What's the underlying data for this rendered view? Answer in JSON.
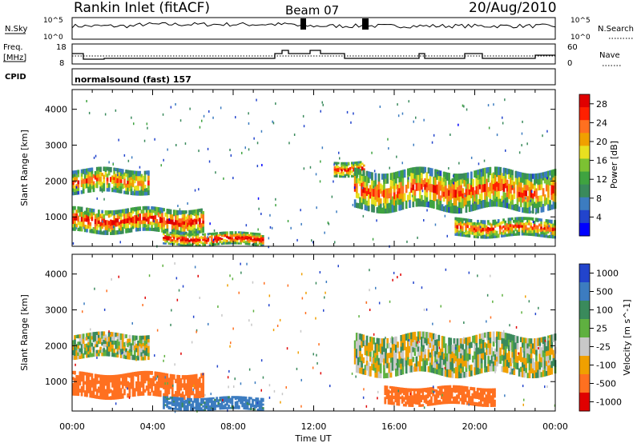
{
  "header": {
    "station": "Rankin Inlet (fitACF)",
    "beam": "Beam 07",
    "date": "20/Aug/2010"
  },
  "noise_panel": {
    "left_label": "N.Sky",
    "right_label": "N.Search",
    "left_ticks": [
      "10^5",
      "10^0"
    ],
    "right_ticks": [
      "10^5",
      "10^0"
    ]
  },
  "freq_panel": {
    "left_label_1": "Freq.",
    "left_label_2": "[MHz]",
    "right_label": "Nave",
    "left_ticks": [
      "18",
      "8"
    ],
    "right_ticks": [
      "60",
      "0"
    ]
  },
  "cpid": {
    "label": "CPID",
    "value": "normalsound (fast) 157"
  },
  "colors": {
    "power": [
      "#0000ff",
      "#2244cc",
      "#3c7cc0",
      "#3a8a5c",
      "#3fa340",
      "#7cc232",
      "#e8e020",
      "#f0a000",
      "#ff7020",
      "#ff2000",
      "#e00000"
    ],
    "velocity": [
      "#2244cc",
      "#3c7cc0",
      "#3a8a5c",
      "#5fb040",
      "#c8c8c8",
      "#f0a000",
      "#ff7020",
      "#e00000"
    ]
  },
  "chart_data": [
    {
      "type": "heatmap",
      "title": "",
      "xlabel": "Time UT",
      "ylabel": "Slant Range [km]",
      "xlim": [
        "00:00",
        "24:00"
      ],
      "ylim": [
        180,
        4550
      ],
      "x_ticks": [
        "00:00",
        "04:00",
        "08:00",
        "12:00",
        "16:00",
        "20:00",
        "00:00"
      ],
      "y_ticks": [
        "1000",
        "2000",
        "3000",
        "4000"
      ],
      "colorbar": {
        "label": "Power [dB]",
        "ticks": [
          "4",
          "8",
          "12",
          "16",
          "20",
          "24",
          "28"
        ],
        "range": [
          0,
          30
        ]
      },
      "echo_bands": [
        {
          "t_start": 0.0,
          "t_end": 3.8,
          "range_low": 1600,
          "range_high": 2400,
          "power_peak": 24
        },
        {
          "t_start": 0.0,
          "t_end": 6.5,
          "range_low": 500,
          "range_high": 1300,
          "power_peak": 28
        },
        {
          "t_start": 4.5,
          "t_end": 9.5,
          "range_low": 180,
          "range_high": 600,
          "power_peak": 30
        },
        {
          "t_start": 13.0,
          "t_end": 14.5,
          "range_low": 2100,
          "range_high": 2600,
          "power_peak": 28
        },
        {
          "t_start": 14.0,
          "t_end": 24.0,
          "range_low": 1100,
          "range_high": 2400,
          "power_peak": 26
        },
        {
          "t_start": 19.0,
          "t_end": 24.0,
          "range_low": 400,
          "range_high": 1000,
          "power_peak": 26
        }
      ]
    },
    {
      "type": "heatmap",
      "title": "",
      "xlabel": "Time UT",
      "ylabel": "Slant Range [km]",
      "xlim": [
        "00:00",
        "24:00"
      ],
      "ylim": [
        180,
        4550
      ],
      "x_ticks": [
        "00:00",
        "04:00",
        "08:00",
        "12:00",
        "16:00",
        "20:00",
        "00:00"
      ],
      "y_ticks": [
        "1000",
        "2000",
        "3000",
        "4000"
      ],
      "colorbar": {
        "label": "Velocity [m s^-1]",
        "ticks": [
          "1000",
          "500",
          "100",
          "25",
          "-25",
          "-100",
          "-500",
          "-1000"
        ]
      },
      "echo_bands": [
        {
          "t_start": 0.0,
          "t_end": 3.8,
          "range_low": 1600,
          "range_high": 2400,
          "velocity": 0
        },
        {
          "t_start": 0.0,
          "t_end": 6.5,
          "range_low": 500,
          "range_high": 1300,
          "velocity": -200
        },
        {
          "t_start": 4.5,
          "t_end": 9.5,
          "range_low": 180,
          "range_high": 600,
          "velocity": 150
        },
        {
          "t_start": 14.0,
          "t_end": 24.0,
          "range_low": 1100,
          "range_high": 2400,
          "velocity": 0
        },
        {
          "t_start": 15.5,
          "t_end": 21.0,
          "range_low": 300,
          "range_high": 900,
          "velocity": -300
        }
      ]
    }
  ]
}
